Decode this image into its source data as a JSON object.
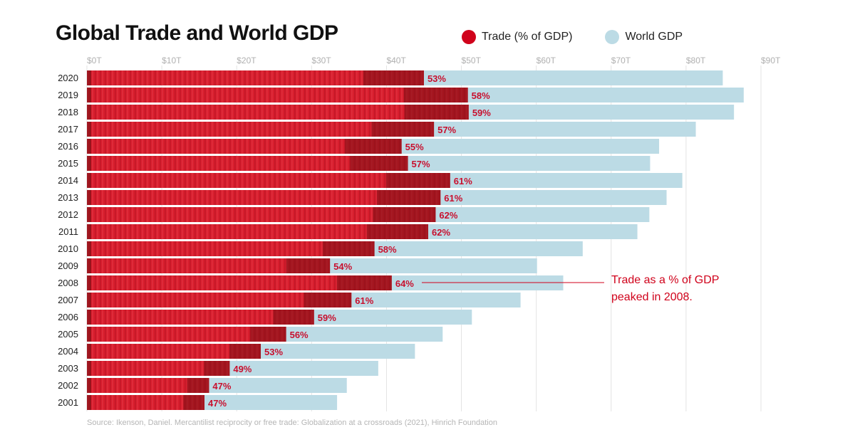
{
  "title": "Global Trade and World GDP",
  "legend": {
    "trade_label": "Trade (% of GDP)",
    "gdp_label": "World GDP"
  },
  "colors": {
    "trade": "#d81e2e",
    "trade_dark": "#7a0f14",
    "gdp": "#bcdbe5",
    "label": "#c8102e",
    "grid": "#e3e3e3",
    "axis_text": "#b0b0b0"
  },
  "annotation": {
    "line1": "Trade as a % of GDP",
    "line2": "peaked in 2008."
  },
  "source": "Source: Ikenson, Daniel. Mercantilist reciprocity or free trade: Globalization at a crossroads (2021), Hinrich Foundation",
  "chart_data": {
    "type": "bar",
    "orientation": "horizontal",
    "categories": [
      "2020",
      "2019",
      "2018",
      "2017",
      "2016",
      "2015",
      "2014",
      "2013",
      "2012",
      "2011",
      "2010",
      "2009",
      "2008",
      "2007",
      "2006",
      "2005",
      "2004",
      "2003",
      "2002",
      "2001"
    ],
    "x_ticks": [
      "$0T",
      "$10T",
      "$20T",
      "$30T",
      "$40T",
      "$50T",
      "$60T",
      "$70T",
      "$80T",
      "$90T"
    ],
    "xlim": [
      0,
      90
    ],
    "grid": true,
    "legend_position": "top-right",
    "series": [
      {
        "name": "World GDP",
        "values": [
          84.9,
          87.7,
          86.4,
          81.3,
          76.4,
          75.2,
          79.5,
          77.4,
          75.1,
          73.5,
          66.2,
          60.1,
          63.6,
          57.9,
          51.4,
          47.5,
          43.8,
          38.9,
          34.7,
          33.4
        ]
      },
      {
        "name": "Trade (% of GDP)",
        "values": [
          53,
          58,
          59,
          57,
          55,
          57,
          61,
          61,
          62,
          62,
          58,
          54,
          64,
          61,
          59,
          56,
          53,
          49,
          47,
          47
        ],
        "labels": [
          "53%",
          "58%",
          "59%",
          "57%",
          "55%",
          "57%",
          "61%",
          "61%",
          "62%",
          "62%",
          "58%",
          "54%",
          "64%",
          "61%",
          "59%",
          "56%",
          "53%",
          "49%",
          "47%",
          "47%"
        ]
      }
    ]
  }
}
